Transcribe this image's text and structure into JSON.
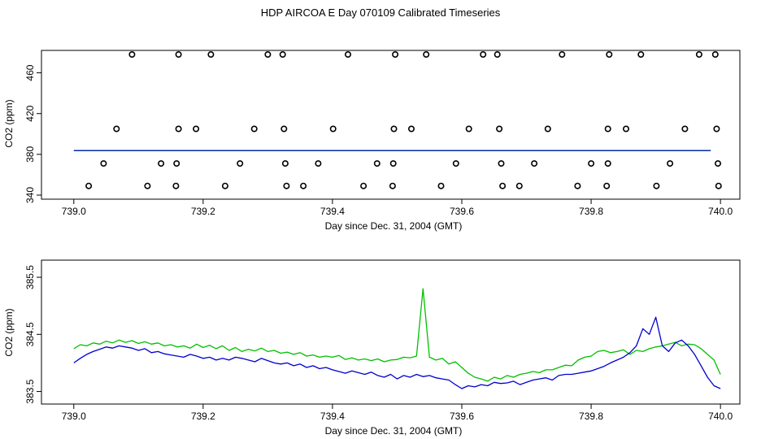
{
  "title": "HDP AIRCOA E  Day 070109  Calibrated Timeseries",
  "series_colors": {
    "green": "#00c000",
    "blue": "#0000d0"
  },
  "chart_data": [
    {
      "type": "scatter",
      "xlabel": "Day since Dec. 31, 2004 (GMT)",
      "ylabel": "CO2 (ppm)",
      "xlim": [
        738.95,
        740.03
      ],
      "ylim": [
        336,
        482
      ],
      "xticks": [
        "739.0",
        "739.2",
        "739.4",
        "739.6",
        "739.8",
        "740.0"
      ],
      "yticks": [
        "340",
        "380",
        "420",
        "460"
      ],
      "points": [
        [
          739.09,
          478
        ],
        [
          739.162,
          478
        ],
        [
          739.212,
          478
        ],
        [
          739.3,
          478
        ],
        [
          739.323,
          478
        ],
        [
          739.424,
          478
        ],
        [
          739.497,
          478
        ],
        [
          739.545,
          478
        ],
        [
          739.633,
          478
        ],
        [
          739.655,
          478
        ],
        [
          739.755,
          478
        ],
        [
          739.828,
          478
        ],
        [
          739.877,
          478
        ],
        [
          739.967,
          478
        ],
        [
          739.992,
          478
        ],
        [
          739.066,
          405
        ],
        [
          739.162,
          405
        ],
        [
          739.189,
          405
        ],
        [
          739.279,
          405
        ],
        [
          739.325,
          405
        ],
        [
          739.401,
          405
        ],
        [
          739.495,
          405
        ],
        [
          739.522,
          405
        ],
        [
          739.611,
          405
        ],
        [
          739.658,
          405
        ],
        [
          739.733,
          405
        ],
        [
          739.826,
          405
        ],
        [
          739.854,
          405
        ],
        [
          739.945,
          405
        ],
        [
          739.994,
          405
        ],
        [
          739.046,
          371
        ],
        [
          739.135,
          371
        ],
        [
          739.159,
          371
        ],
        [
          739.257,
          371
        ],
        [
          739.327,
          371
        ],
        [
          739.378,
          371
        ],
        [
          739.469,
          371
        ],
        [
          739.494,
          371
        ],
        [
          739.591,
          371
        ],
        [
          739.661,
          371
        ],
        [
          739.712,
          371
        ],
        [
          739.8,
          371
        ],
        [
          739.826,
          371
        ],
        [
          739.922,
          371
        ],
        [
          739.996,
          371
        ],
        [
          739.023,
          349
        ],
        [
          739.114,
          349
        ],
        [
          739.158,
          349
        ],
        [
          739.234,
          349
        ],
        [
          739.329,
          349
        ],
        [
          739.355,
          349
        ],
        [
          739.448,
          349
        ],
        [
          739.493,
          349
        ],
        [
          739.568,
          349
        ],
        [
          739.663,
          349
        ],
        [
          739.689,
          349
        ],
        [
          739.779,
          349
        ],
        [
          739.824,
          349
        ],
        [
          739.901,
          349
        ],
        [
          739.997,
          349
        ]
      ],
      "lines": [
        {
          "color": "green",
          "x": [
            739.0,
            739.985
          ],
          "y": [
            383.9,
            383.9
          ]
        },
        {
          "color": "blue",
          "x": [
            739.0,
            739.985
          ],
          "y": [
            383.6,
            383.6
          ]
        }
      ]
    },
    {
      "type": "line",
      "xlabel": "Day since Dec. 31, 2004 (GMT)",
      "ylabel": "CO2 (ppm)",
      "xlim": [
        738.95,
        740.03
      ],
      "ylim": [
        383.28,
        385.8
      ],
      "xticks": [
        "739.0",
        "739.2",
        "739.4",
        "739.6",
        "739.8",
        "740.0"
      ],
      "yticks": [
        "383.5",
        "384.5",
        "385.5"
      ],
      "x_start": 739.0,
      "x_step": 0.01,
      "series": [
        {
          "color": "green",
          "values": [
            384.25,
            384.32,
            384.3,
            384.35,
            384.33,
            384.38,
            384.35,
            384.4,
            384.36,
            384.39,
            384.34,
            384.37,
            384.33,
            384.35,
            384.3,
            384.32,
            384.28,
            384.3,
            384.26,
            384.33,
            384.27,
            384.31,
            384.25,
            384.3,
            384.22,
            384.27,
            384.2,
            384.24,
            384.21,
            384.26,
            384.2,
            384.22,
            384.17,
            384.19,
            384.15,
            384.18,
            384.12,
            384.14,
            384.1,
            384.12,
            384.1,
            384.13,
            384.06,
            384.09,
            384.05,
            384.07,
            384.04,
            384.07,
            384.02,
            384.05,
            384.06,
            384.1,
            384.09,
            384.12,
            385.3,
            384.1,
            384.05,
            384.08,
            383.98,
            384.02,
            383.92,
            383.82,
            383.75,
            383.72,
            383.68,
            383.75,
            383.72,
            383.78,
            383.75,
            383.8,
            383.82,
            383.85,
            383.83,
            383.88,
            383.88,
            383.92,
            383.96,
            383.95,
            384.05,
            384.1,
            384.12,
            384.2,
            384.22,
            384.18,
            384.2,
            384.23,
            384.15,
            384.22,
            384.2,
            384.25,
            384.28,
            384.3,
            384.33,
            384.36,
            384.3,
            384.33,
            384.32,
            384.25,
            384.15,
            384.05,
            383.8
          ]
        },
        {
          "color": "blue",
          "values": [
            384.0,
            384.08,
            384.15,
            384.2,
            384.24,
            384.28,
            384.26,
            384.3,
            384.28,
            384.26,
            384.22,
            384.25,
            384.18,
            384.2,
            384.16,
            384.14,
            384.12,
            384.1,
            384.15,
            384.12,
            384.08,
            384.1,
            384.05,
            384.08,
            384.05,
            384.1,
            384.08,
            384.05,
            384.02,
            384.08,
            384.04,
            384.0,
            383.98,
            384.0,
            383.95,
            383.98,
            383.92,
            383.95,
            383.9,
            383.92,
            383.88,
            383.85,
            383.82,
            383.86,
            383.83,
            383.8,
            383.84,
            383.78,
            383.75,
            383.8,
            383.72,
            383.78,
            383.75,
            383.8,
            383.76,
            383.78,
            383.74,
            383.72,
            383.7,
            383.62,
            383.55,
            383.6,
            383.58,
            383.62,
            383.6,
            383.66,
            383.64,
            383.65,
            383.68,
            383.62,
            383.66,
            383.7,
            383.72,
            383.74,
            383.7,
            383.78,
            383.8,
            383.8,
            383.82,
            383.84,
            383.86,
            383.9,
            383.94,
            384.0,
            384.05,
            384.1,
            384.18,
            384.3,
            384.6,
            384.5,
            384.8,
            384.3,
            384.2,
            384.35,
            384.4,
            384.3,
            384.15,
            383.95,
            383.75,
            383.6,
            383.55
          ]
        }
      ]
    }
  ]
}
